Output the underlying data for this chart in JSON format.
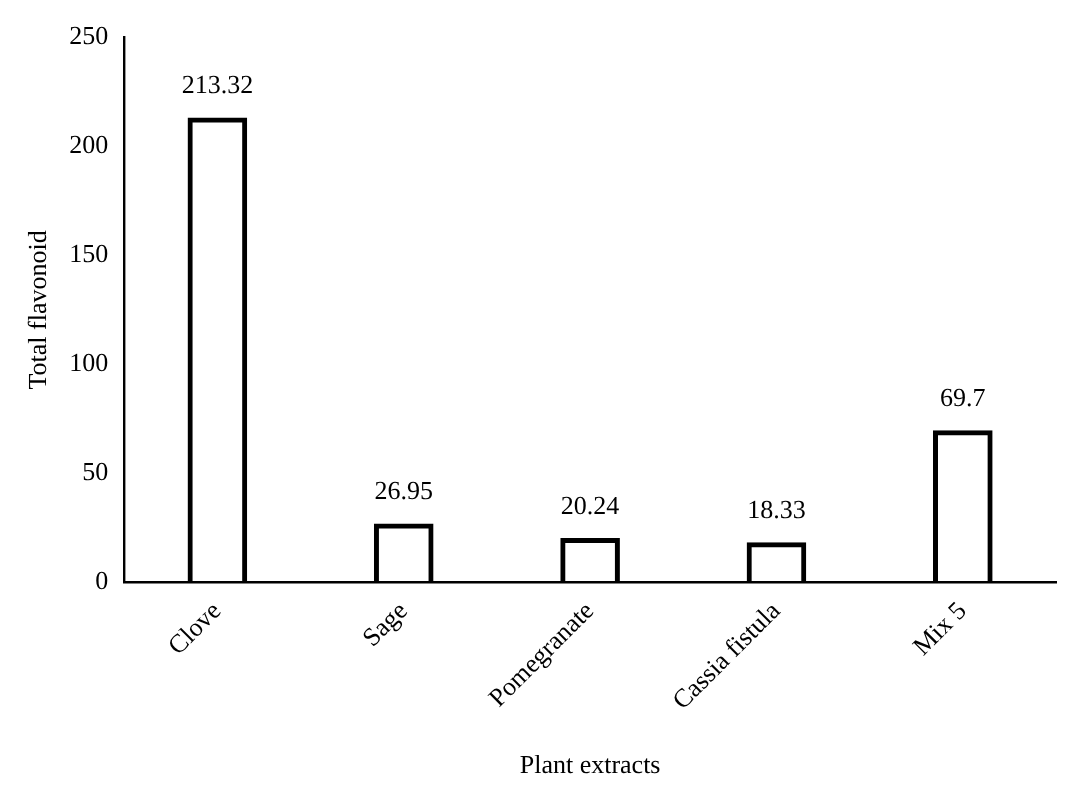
{
  "chart_data": {
    "type": "bar",
    "xlabel": "Plant extracts",
    "ylabel": "Total flavonoid",
    "categories": [
      "Clove",
      "Sage",
      "Pomegranate",
      "Cassia fistula",
      "Mix 5"
    ],
    "values": [
      213.32,
      26.95,
      20.24,
      18.33,
      69.7
    ],
    "color": "#000000",
    "ylim": [
      0,
      250
    ],
    "yticks": [
      0,
      50,
      100,
      150,
      200,
      250
    ],
    "grid": false,
    "legend": false,
    "data_labels": true
  }
}
